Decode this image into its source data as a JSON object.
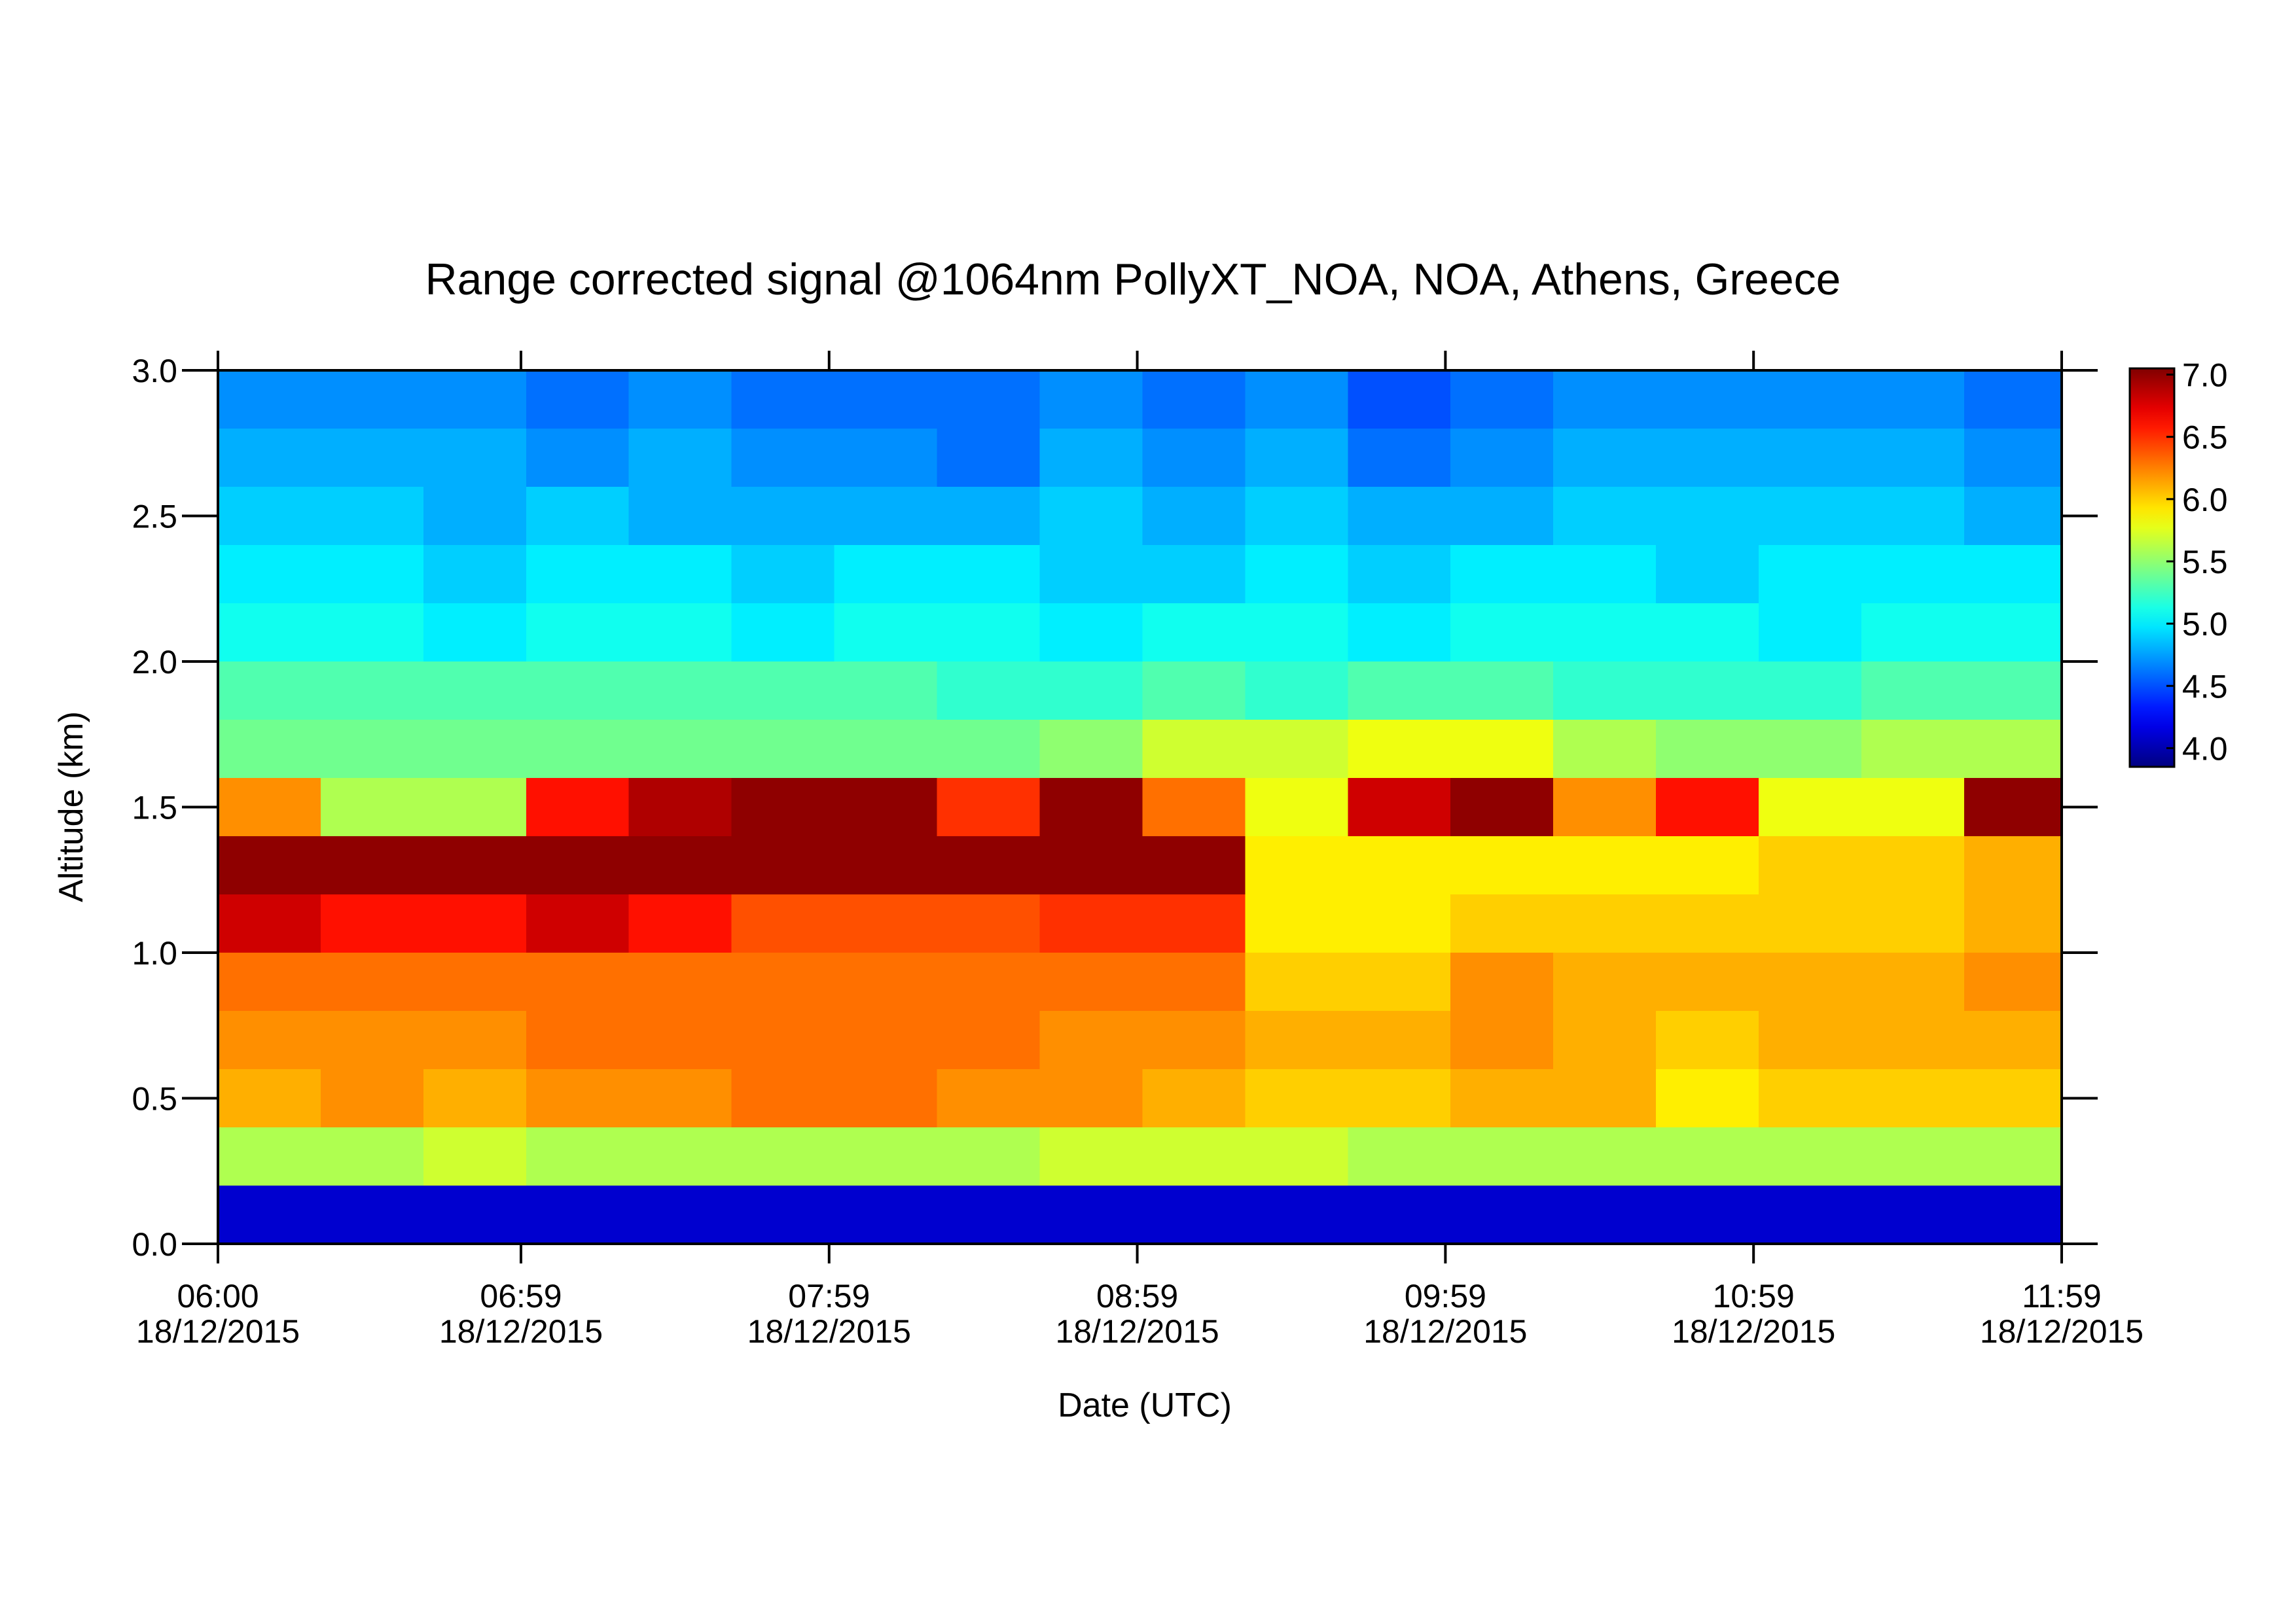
{
  "chart_data": {
    "type": "heatmap",
    "title": "Range corrected signal @1064nm  PollyXT_NOA, NOA, Athens, Greece",
    "x_label": "Date (UTC)",
    "y_label": "Altitude (km)",
    "colormap": "jet",
    "x": [
      "2015-12-18T06:00",
      "2015-12-18T06:20",
      "2015-12-18T06:40",
      "2015-12-18T07:00",
      "2015-12-18T07:20",
      "2015-12-18T07:40",
      "2015-12-18T08:00",
      "2015-12-18T08:20",
      "2015-12-18T08:40",
      "2015-12-18T09:00",
      "2015-12-18T09:20",
      "2015-12-18T09:40",
      "2015-12-18T10:00",
      "2015-12-18T10:20",
      "2015-12-18T10:40",
      "2015-12-18T11:00",
      "2015-12-18T11:20",
      "2015-12-18T11:40"
    ],
    "y": [
      0,
      0.2,
      0.4,
      0.6,
      0.8,
      1.0,
      1.2,
      1.4,
      1.6,
      1.8,
      2.0,
      2.2,
      2.4,
      2.6,
      2.8
    ],
    "values": [
      [
        4.1,
        4.1,
        4.1,
        4.1,
        4.1,
        4.1,
        4.1,
        4.1,
        4.1,
        4.1,
        4.1,
        4.1,
        4.1,
        4.1,
        4.1,
        4.1,
        4.1,
        4.1
      ],
      [
        5.6,
        5.6,
        5.7,
        5.6,
        5.6,
        5.6,
        5.6,
        5.6,
        5.7,
        5.7,
        5.7,
        5.6,
        5.6,
        5.6,
        5.6,
        5.6,
        5.6,
        5.6
      ],
      [
        6.1,
        6.2,
        6.1,
        6.2,
        6.2,
        6.3,
        6.3,
        6.2,
        6.2,
        6.1,
        6.0,
        6.0,
        6.1,
        6.1,
        5.9,
        6.0,
        6.0,
        6.0
      ],
      [
        6.2,
        6.2,
        6.2,
        6.3,
        6.3,
        6.3,
        6.3,
        6.3,
        6.2,
        6.2,
        6.1,
        6.1,
        6.2,
        6.1,
        6.0,
        6.1,
        6.1,
        6.1
      ],
      [
        6.3,
        6.3,
        6.3,
        6.3,
        6.3,
        6.3,
        6.3,
        6.3,
        6.3,
        6.3,
        6.0,
        6.0,
        6.2,
        6.1,
        6.1,
        6.1,
        6.1,
        6.2
      ],
      [
        6.8,
        6.6,
        6.6,
        6.8,
        6.6,
        6.4,
        6.4,
        6.4,
        6.5,
        6.5,
        5.9,
        5.9,
        6.0,
        6.0,
        6.0,
        6.0,
        6.0,
        6.1
      ],
      [
        7.0,
        7.0,
        7.0,
        7.0,
        7.0,
        7.0,
        7.0,
        7.0,
        7.0,
        7.0,
        5.9,
        5.9,
        5.9,
        5.9,
        5.9,
        6.0,
        6.0,
        6.1
      ],
      [
        6.2,
        5.6,
        5.6,
        6.6,
        6.9,
        7.0,
        7.0,
        6.5,
        7.0,
        6.3,
        5.8,
        6.8,
        7.0,
        6.2,
        6.6,
        5.8,
        5.8,
        7.0
      ],
      [
        5.4,
        5.4,
        5.4,
        5.4,
        5.4,
        5.4,
        5.4,
        5.4,
        5.5,
        5.7,
        5.7,
        5.8,
        5.8,
        5.6,
        5.5,
        5.5,
        5.6,
        5.6
      ],
      [
        5.3,
        5.3,
        5.3,
        5.3,
        5.3,
        5.3,
        5.3,
        5.2,
        5.2,
        5.3,
        5.2,
        5.3,
        5.3,
        5.2,
        5.2,
        5.2,
        5.3,
        5.3
      ],
      [
        5.1,
        5.1,
        5.0,
        5.1,
        5.1,
        5.0,
        5.1,
        5.1,
        5.0,
        5.1,
        5.1,
        5.0,
        5.1,
        5.1,
        5.1,
        5.0,
        5.1,
        5.1
      ],
      [
        5.0,
        5.0,
        4.9,
        5.0,
        5.0,
        4.9,
        5.0,
        5.0,
        4.9,
        4.9,
        5.0,
        4.9,
        5.0,
        5.0,
        4.9,
        5.0,
        5.0,
        5.0
      ],
      [
        4.9,
        4.9,
        4.8,
        4.9,
        4.8,
        4.8,
        4.8,
        4.8,
        4.9,
        4.8,
        4.9,
        4.8,
        4.8,
        4.9,
        4.9,
        4.9,
        4.9,
        4.8
      ],
      [
        4.8,
        4.8,
        4.8,
        4.7,
        4.8,
        4.7,
        4.7,
        4.6,
        4.8,
        4.7,
        4.8,
        4.6,
        4.7,
        4.8,
        4.8,
        4.8,
        4.8,
        4.7
      ],
      [
        4.7,
        4.7,
        4.7,
        4.6,
        4.7,
        4.6,
        4.6,
        4.6,
        4.7,
        4.6,
        4.7,
        4.5,
        4.6,
        4.7,
        4.7,
        4.7,
        4.7,
        4.6
      ]
    ],
    "xlim": [
      "2015-12-18T06:00",
      "2015-12-18T11:59"
    ],
    "xticks": [
      {
        "value": "2015-12-18T06:00",
        "label": [
          "06:00",
          "18/12/2015"
        ]
      },
      {
        "value": "2015-12-18T06:59",
        "label": [
          "06:59",
          "18/12/2015"
        ]
      },
      {
        "value": "2015-12-18T07:59",
        "label": [
          "07:59",
          "18/12/2015"
        ]
      },
      {
        "value": "2015-12-18T08:59",
        "label": [
          "08:59",
          "18/12/2015"
        ]
      },
      {
        "value": "2015-12-18T09:59",
        "label": [
          "09:59",
          "18/12/2015"
        ]
      },
      {
        "value": "2015-12-18T10:59",
        "label": [
          "10:59",
          "18/12/2015"
        ]
      },
      {
        "value": "2015-12-18T11:59",
        "label": [
          "11:59",
          "18/12/2015"
        ]
      }
    ],
    "ylim": [
      0,
      3
    ],
    "yticks": [
      {
        "value": 0,
        "label": "0.0"
      },
      {
        "value": 0.5,
        "label": "0.5"
      },
      {
        "value": 1,
        "label": "1.0"
      },
      {
        "value": 1.5,
        "label": "1.5"
      },
      {
        "value": 2,
        "label": "2.0"
      },
      {
        "value": 2.5,
        "label": "2.5"
      },
      {
        "value": 3,
        "label": "3.0"
      }
    ],
    "zlim": [
      3.85,
      7.05
    ],
    "zticks": [
      {
        "value": 4,
        "label": "4.0"
      },
      {
        "value": 4.5,
        "label": "4.5"
      },
      {
        "value": 5,
        "label": "5.0"
      },
      {
        "value": 5.5,
        "label": "5.5"
      },
      {
        "value": 6,
        "label": "6.0"
      },
      {
        "value": 6.5,
        "label": "6.5"
      },
      {
        "value": 7,
        "label": "7.0"
      }
    ]
  }
}
